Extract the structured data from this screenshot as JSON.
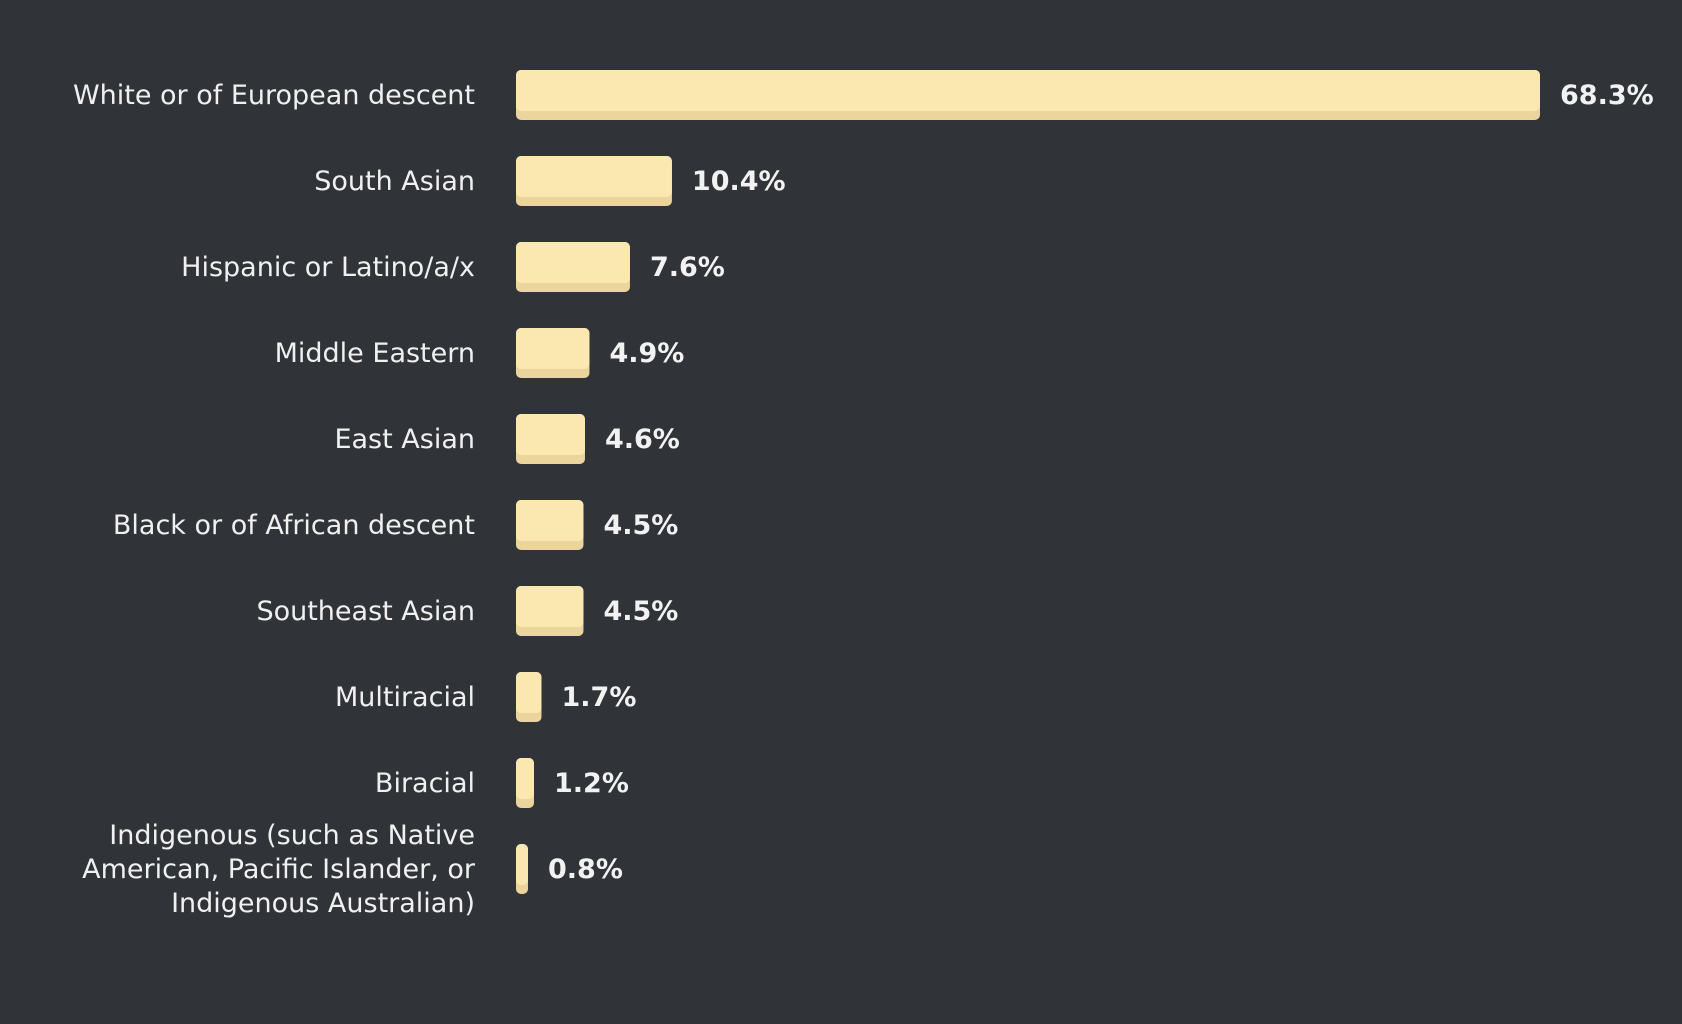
{
  "chart_data": {
    "type": "bar",
    "orientation": "horizontal",
    "categories": [
      "White or of European descent",
      "South Asian",
      "Hispanic or Latino/a/x",
      "Middle Eastern",
      "East Asian",
      "Black or of African descent",
      "Southeast Asian",
      "Multiracial",
      "Biracial",
      "Indigenous (such as Native American, Pacific Islander, or Indigenous Australian)"
    ],
    "category_label_lines": [
      [
        "White or of European descent"
      ],
      [
        "South Asian"
      ],
      [
        "Hispanic or Latino/a/x"
      ],
      [
        "Middle Eastern"
      ],
      [
        "East Asian"
      ],
      [
        "Black or of African descent"
      ],
      [
        "Southeast Asian"
      ],
      [
        "Multiracial"
      ],
      [
        "Biracial"
      ],
      [
        "Indigenous (such as Native",
        "American, Pacific Islander, or",
        "Indigenous Australian)"
      ]
    ],
    "values": [
      68.3,
      10.4,
      7.6,
      4.9,
      4.6,
      4.5,
      4.5,
      1.7,
      1.2,
      0.8
    ],
    "value_labels": [
      "68.3%",
      "10.4%",
      "7.6%",
      "4.9%",
      "4.6%",
      "4.5%",
      "4.5%",
      "1.7%",
      "1.2%",
      "0.8%"
    ],
    "unit": "%",
    "title": "",
    "xlabel": "",
    "ylabel": "",
    "xlim": [
      0,
      68.3
    ],
    "grid": false,
    "legend": "none",
    "colors": {
      "background": "#303338",
      "bar": "#fbe7b0",
      "bar_shade": "#ecd59c",
      "category_text": "#f0f0f0",
      "value_text": "#f2f2f2"
    }
  }
}
